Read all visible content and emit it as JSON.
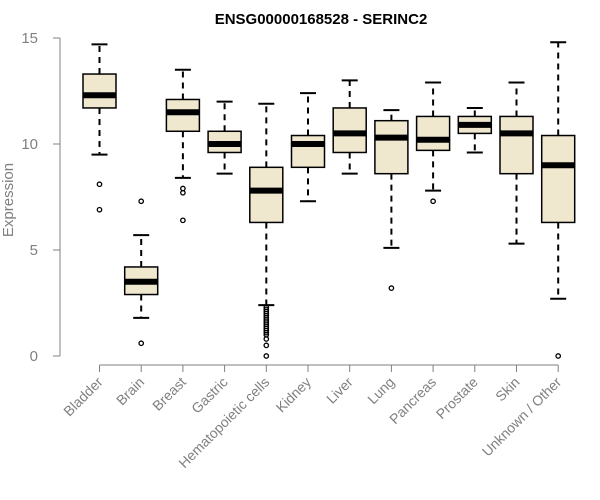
{
  "chart_data": {
    "type": "boxplot",
    "title": "ENSG00000168528 - SERINC2",
    "xlabel": "",
    "ylabel": "Expression",
    "ylim": [
      0,
      15
    ],
    "yticks": [
      0,
      5,
      10,
      15
    ],
    "box_fill": "#EFE8CF",
    "categories": [
      "Bladder",
      "Brain",
      "Breast",
      "Gastric",
      "Hematopoietic cells",
      "Kidney",
      "Liver",
      "Lung",
      "Pancreas",
      "Prostate",
      "Skin",
      "Unknown / Other"
    ],
    "boxes": [
      {
        "category": "Bladder",
        "whisker_low": 9.5,
        "q1": 11.7,
        "median": 12.3,
        "q3": 13.3,
        "whisker_high": 14.7,
        "outliers": [
          8.1,
          6.9
        ]
      },
      {
        "category": "Brain",
        "whisker_low": 1.8,
        "q1": 2.9,
        "median": 3.5,
        "q3": 4.2,
        "whisker_high": 5.7,
        "outliers": [
          7.3,
          0.6
        ]
      },
      {
        "category": "Breast",
        "whisker_low": 8.4,
        "q1": 10.6,
        "median": 11.5,
        "q3": 12.1,
        "whisker_high": 13.5,
        "outliers": [
          7.9,
          7.7,
          6.4
        ]
      },
      {
        "category": "Gastric",
        "whisker_low": 8.6,
        "q1": 9.6,
        "median": 10.0,
        "q3": 10.6,
        "whisker_high": 12.0,
        "outliers": []
      },
      {
        "category": "Hematopoietic cells",
        "whisker_low": 2.4,
        "q1": 6.3,
        "median": 7.8,
        "q3": 8.9,
        "whisker_high": 11.9,
        "outliers": [
          2.3,
          2.2,
          2.1,
          2.0,
          1.9,
          1.8,
          1.7,
          1.6,
          1.5,
          1.4,
          1.3,
          1.2,
          1.1,
          1.0,
          0.8,
          0.5,
          0.0
        ]
      },
      {
        "category": "Kidney",
        "whisker_low": 7.3,
        "q1": 8.9,
        "median": 10.0,
        "q3": 10.4,
        "whisker_high": 12.4,
        "outliers": []
      },
      {
        "category": "Liver",
        "whisker_low": 8.6,
        "q1": 9.6,
        "median": 10.5,
        "q3": 11.7,
        "whisker_high": 13.0,
        "outliers": []
      },
      {
        "category": "Lung",
        "whisker_low": 5.1,
        "q1": 8.6,
        "median": 10.3,
        "q3": 11.1,
        "whisker_high": 11.6,
        "outliers": [
          3.2
        ]
      },
      {
        "category": "Pancreas",
        "whisker_low": 7.8,
        "q1": 9.7,
        "median": 10.2,
        "q3": 11.3,
        "whisker_high": 12.9,
        "outliers": [
          7.3
        ]
      },
      {
        "category": "Prostate",
        "whisker_low": 9.6,
        "q1": 10.5,
        "median": 10.9,
        "q3": 11.3,
        "whisker_high": 11.7,
        "outliers": []
      },
      {
        "category": "Skin",
        "whisker_low": 5.3,
        "q1": 8.6,
        "median": 10.5,
        "q3": 11.3,
        "whisker_high": 12.9,
        "outliers": []
      },
      {
        "category": "Unknown / Other",
        "whisker_low": 2.7,
        "q1": 6.3,
        "median": 9.0,
        "q3": 10.4,
        "whisker_high": 14.8,
        "outliers": [
          0.0
        ]
      }
    ]
  }
}
